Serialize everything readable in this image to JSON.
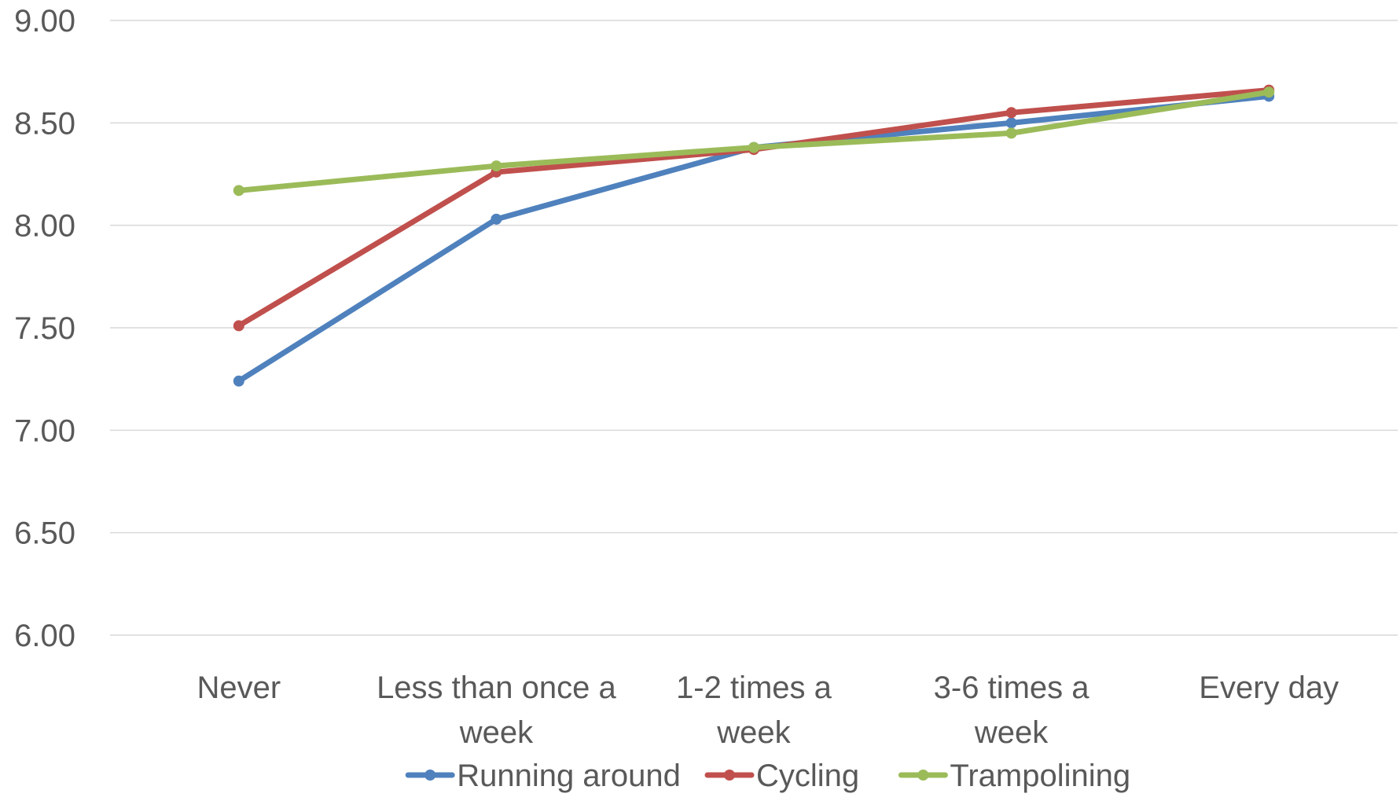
{
  "chart_data": {
    "type": "line",
    "categories": [
      [
        "Never"
      ],
      [
        "Less than once a",
        "week"
      ],
      [
        "1-2 times a",
        "week"
      ],
      [
        "3-6 times a",
        "week"
      ],
      [
        "Every day"
      ]
    ],
    "series": [
      {
        "name": "Running around",
        "color": "#4f81bd",
        "values": [
          7.24,
          8.03,
          8.38,
          8.5,
          8.63
        ]
      },
      {
        "name": "Cycling",
        "color": "#c0504d",
        "values": [
          7.51,
          8.26,
          8.37,
          8.55,
          8.66
        ]
      },
      {
        "name": "Trampolining",
        "color": "#9bbb59",
        "values": [
          8.17,
          8.29,
          8.38,
          8.45,
          8.65
        ]
      }
    ],
    "ylim": [
      6.0,
      9.0
    ],
    "yticks": [
      "6.00",
      "6.50",
      "7.00",
      "7.50",
      "8.00",
      "8.50",
      "9.00"
    ],
    "ytick_values": [
      6.0,
      6.5,
      7.0,
      7.5,
      8.0,
      8.5,
      9.0
    ],
    "grid": true,
    "legend_position": "bottom",
    "title": "",
    "xlabel": "",
    "ylabel": ""
  }
}
